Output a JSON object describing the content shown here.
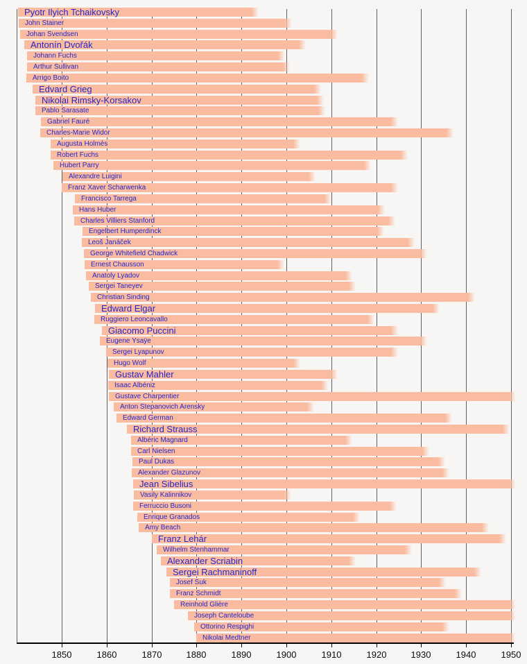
{
  "chart_data": {
    "type": "timeline",
    "x_axis": {
      "min": 1840,
      "max": 1950,
      "tick_labels": [
        "1850",
        "1860",
        "1870",
        "1880",
        "1890",
        "1900",
        "1910",
        "1920",
        "1930",
        "1940",
        "1950"
      ]
    },
    "bar_color": "#FABCA0",
    "label_color": "#2626C8",
    "gridline_color": "#5F5F5F",
    "composers": [
      {
        "name": "Pyotr Ilyich Tchaikovsky",
        "born": 1840.35,
        "died": 1893.85,
        "large": true
      },
      {
        "name": "John Stainer",
        "born": 1840.43,
        "died": 1901.25,
        "large": false
      },
      {
        "name": "Johan Svendsen",
        "born": 1840.75,
        "died": 1911.45,
        "large": false
      },
      {
        "name": "Antonín Dvořák",
        "born": 1841.69,
        "died": 1904.33,
        "large": true
      },
      {
        "name": "Johann Fuchs",
        "born": 1842.34,
        "died": 1899.76,
        "large": false
      },
      {
        "name": "Arthur Sullivan",
        "born": 1842.36,
        "died": 1900.89,
        "large": false
      },
      {
        "name": "Arrigo Boito",
        "born": 1842.15,
        "died": 1918.44,
        "large": false
      },
      {
        "name": "Edvard Grieg",
        "born": 1843.45,
        "died": 1907.67,
        "large": true
      },
      {
        "name": "Nikolai Rimsky-Korsakov",
        "born": 1844.21,
        "died": 1908.47,
        "large": true
      },
      {
        "name": "Pablo Sarasate",
        "born": 1844.19,
        "died": 1908.72,
        "large": false
      },
      {
        "name": "Gabriel Fauré",
        "born": 1845.36,
        "died": 1924.84,
        "large": false
      },
      {
        "name": "Charles-Marie Widor",
        "born": 1845.15,
        "died": 1937.19,
        "large": false
      },
      {
        "name": "Augusta Holmès",
        "born": 1847.5,
        "died": 1903.08,
        "large": false
      },
      {
        "name": "Robert Fuchs",
        "born": 1847.6,
        "died": 1927.13,
        "large": false
      },
      {
        "name": "Hubert Parry",
        "born": 1848.16,
        "died": 1918.77,
        "large": false
      },
      {
        "name": "Alexandre Luigini",
        "born": 1850.19,
        "died": 1906.58,
        "large": false
      },
      {
        "name": "Franz Xaver Scharwenka",
        "born": 1850.04,
        "died": 1924.94,
        "large": false
      },
      {
        "name": "Francisco Tarrega",
        "born": 1852.89,
        "died": 1909.96,
        "large": false
      },
      {
        "name": "Hans Huber",
        "born": 1852.49,
        "died": 1921.98,
        "large": false
      },
      {
        "name": "Charles Villiers Stanford",
        "born": 1852.75,
        "died": 1924.24,
        "large": false
      },
      {
        "name": "Engelbert Humperdinck",
        "born": 1854.67,
        "died": 1921.74,
        "large": false
      },
      {
        "name": "Leoš Janáček",
        "born": 1854.5,
        "died": 1928.61,
        "large": false
      },
      {
        "name": "George Whitefield Chadwick",
        "born": 1854.87,
        "died": 1931.26,
        "large": false
      },
      {
        "name": "Ernest Chausson",
        "born": 1855.05,
        "died": 1899.44,
        "large": false
      },
      {
        "name": "Anatoly Lyadov",
        "born": 1855.36,
        "died": 1914.66,
        "large": false
      },
      {
        "name": "Sergei Taneyev",
        "born": 1856.0,
        "died": 1915.47,
        "large": false
      },
      {
        "name": "Christian Sinding",
        "born": 1856.5,
        "died": 1941.92,
        "large": false
      },
      {
        "name": "Edward Elgar",
        "born": 1857.42,
        "died": 1934.15,
        "large": true
      },
      {
        "name": "Ruggiero Leoncavallo",
        "born": 1857.31,
        "died": 1919.61,
        "large": false
      },
      {
        "name": "Giacomo Puccini",
        "born": 1858.97,
        "died": 1924.91,
        "large": true
      },
      {
        "name": "Eugene Ysaÿe",
        "born": 1858.54,
        "died": 1931.36,
        "large": false
      },
      {
        "name": "Sergei Lyapunov",
        "born": 1859.92,
        "died": 1924.85,
        "large": false
      },
      {
        "name": "Hugo Wolf",
        "born": 1860.2,
        "died": 1903.14,
        "large": false
      },
      {
        "name": "Gustav Mahler",
        "born": 1860.52,
        "died": 1911.38,
        "large": true
      },
      {
        "name": "Isaac Albéniz",
        "born": 1860.41,
        "died": 1909.38,
        "large": false
      },
      {
        "name": "Gustave Charpentier",
        "born": 1860.48,
        "died": 1956.13,
        "large": false
      },
      {
        "name": "Anton Stepanovich Arensky",
        "born": 1861.53,
        "died": 1906.15,
        "large": false
      },
      {
        "name": "Edward German",
        "born": 1862.13,
        "died": 1936.86,
        "large": false
      },
      {
        "name": "Richard Strauss",
        "born": 1864.44,
        "died": 1949.69,
        "large": true
      },
      {
        "name": "Albéric Magnard",
        "born": 1865.44,
        "died": 1914.67,
        "large": false
      },
      {
        "name": "Carl Nielsen",
        "born": 1865.44,
        "died": 1931.76,
        "large": false
      },
      {
        "name": "Paul Dukas",
        "born": 1865.75,
        "died": 1935.37,
        "large": false
      },
      {
        "name": "Alexander Glazunov",
        "born": 1865.61,
        "died": 1936.22,
        "large": false
      },
      {
        "name": "Jean Sibelius",
        "born": 1865.94,
        "died": 1957.72,
        "large": true
      },
      {
        "name": "Vasily Kalinnikov",
        "born": 1866.04,
        "died": 1901.03,
        "large": false
      },
      {
        "name": "Ferruccio Busoni",
        "born": 1865.9,
        "died": 1924.57,
        "large": false
      },
      {
        "name": "Enrique Granados",
        "born": 1866.75,
        "died": 1916.23,
        "large": false
      },
      {
        "name": "Amy Beach",
        "born": 1867.1,
        "died": 1944.99,
        "large": false
      },
      {
        "name": "Franz Lehár",
        "born": 1870.0,
        "died": 1948.81,
        "large": true
      },
      {
        "name": "Wilhelm Stenhammar",
        "born": 1871.1,
        "died": 1927.89,
        "large": false
      },
      {
        "name": "Alexander Scriabin",
        "born": 1872.02,
        "died": 1915.32,
        "large": true
      },
      {
        "name": "Sergei Rachmaninoff",
        "born": 1873.25,
        "died": 1943.24,
        "large": true
      },
      {
        "name": "Josef Suk",
        "born": 1874.01,
        "died": 1935.41,
        "large": false
      },
      {
        "name": "Franz Schmidt",
        "born": 1874.1,
        "died": 1939.11,
        "large": false
      },
      {
        "name": "Reinhold Glière",
        "born": 1875.03,
        "died": 1956.48,
        "large": false
      },
      {
        "name": "Joseph Canteloube",
        "born": 1878.1,
        "died": 1957.84,
        "large": false
      },
      {
        "name": "Ottorino Respighi",
        "born": 1879.52,
        "died": 1936.3,
        "large": false
      },
      {
        "name": "Nikolai Medtner",
        "born": 1880.01,
        "died": 1951.87,
        "large": false
      }
    ]
  }
}
